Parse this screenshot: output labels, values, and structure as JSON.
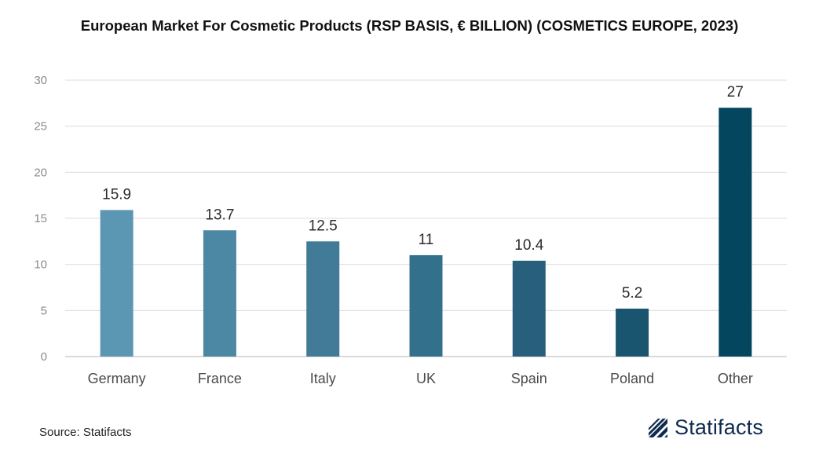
{
  "chart_data": {
    "type": "bar",
    "title": "European Market For Cosmetic Products (RSP BASIS, € BILLION) (COSMETICS EUROPE, 2023)",
    "categories": [
      "Germany",
      "France",
      "Italy",
      "UK",
      "Spain",
      "Poland",
      "Other"
    ],
    "values": [
      15.9,
      13.7,
      12.5,
      11,
      10.4,
      5.2,
      27
    ],
    "value_labels": [
      "15.9",
      "13.7",
      "12.5",
      "11",
      "10.4",
      "5.2",
      "27"
    ],
    "ylim": [
      0,
      30
    ],
    "yticks": [
      0,
      5,
      10,
      15,
      20,
      25,
      30
    ],
    "grid": true,
    "legend": "none",
    "colors": [
      "#5b97b2",
      "#4c88a3",
      "#427b97",
      "#33708b",
      "#275f7c",
      "#1a556f",
      "#05465f"
    ]
  },
  "footer": {
    "source": "Source: Statifacts",
    "brand": "Statifacts",
    "brand_color": "#0e2a4f"
  }
}
